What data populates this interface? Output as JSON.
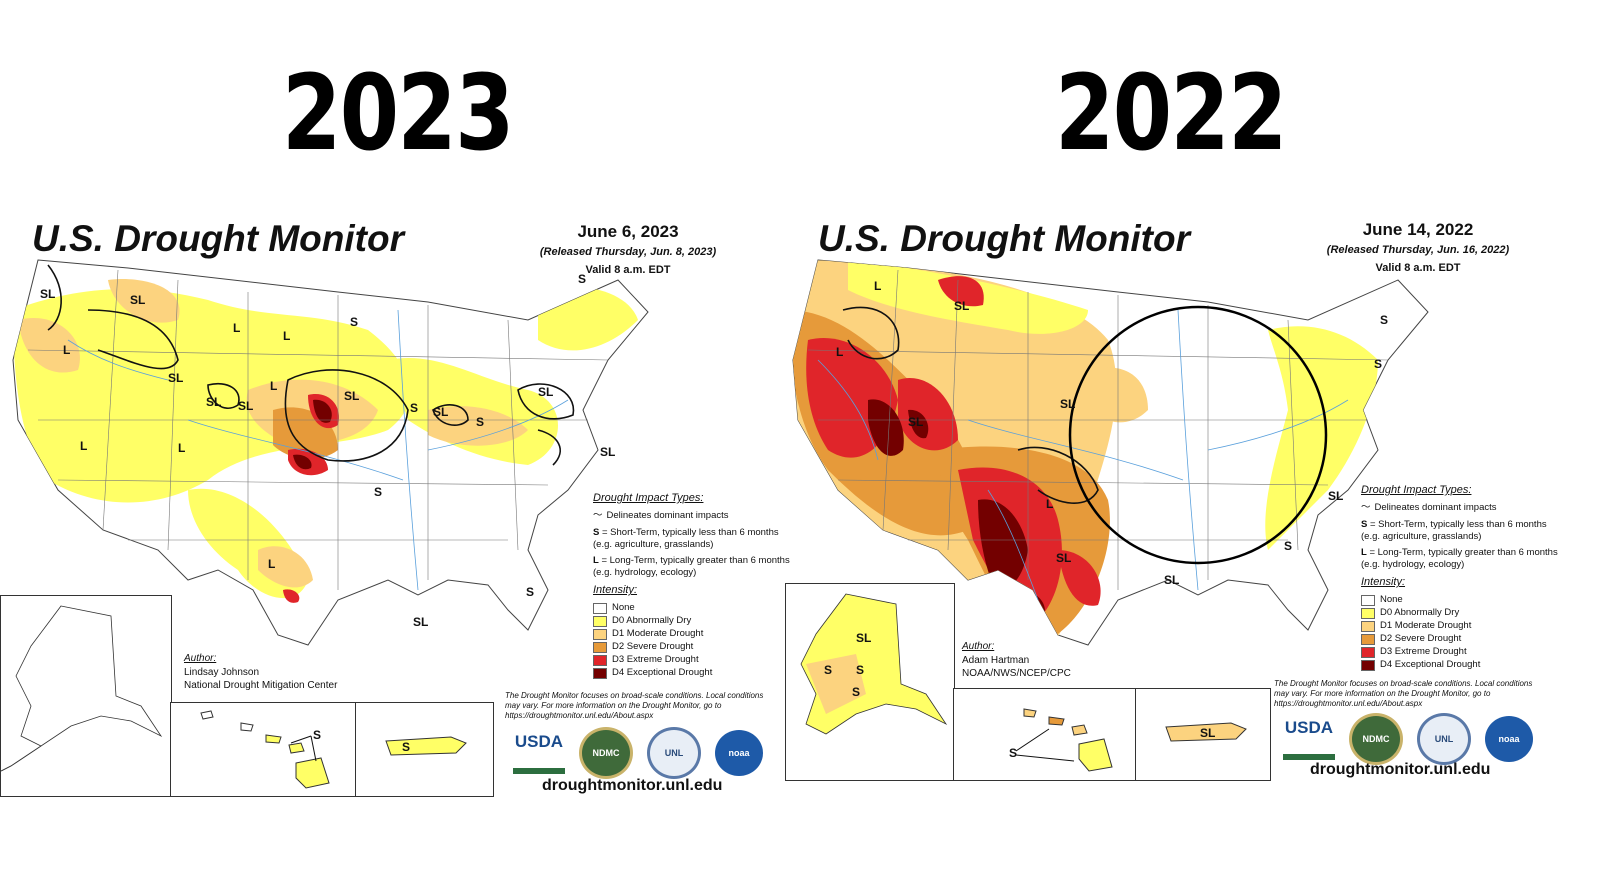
{
  "left": {
    "year": "2023",
    "title": "U.S. Drought Monitor",
    "date": "June 6, 2023",
    "released": "(Released Thursday, Jun. 8, 2023)",
    "valid": "Valid 8 a.m. EDT",
    "author_heading": "Author:",
    "author_name": "Lindsay Johnson",
    "author_org": "National Drought Mitigation Center",
    "url": "droughtmonitor.unl.edu",
    "labels": [
      "SL",
      "SL",
      "L",
      "L",
      "S",
      "L",
      "SL",
      "SL",
      "L",
      "SL",
      "S",
      "SL",
      "S",
      "SL",
      "SL",
      "L",
      "L",
      "S",
      "SL",
      "L",
      "S",
      "SL",
      "S",
      "S"
    ]
  },
  "right": {
    "year": "2022",
    "title": "U.S. Drought Monitor",
    "date": "June 14, 2022",
    "released": "(Released Thursday, Jun. 16, 2022)",
    "valid": "Valid 8 a.m. EDT",
    "author_heading": "Author:",
    "author_name": "Adam Hartman",
    "author_org": "NOAA/NWS/NCEP/CPC",
    "url": "droughtmonitor.unl.edu",
    "labels": [
      "L",
      "SL",
      "L",
      "SL",
      "SL",
      "L",
      "SL",
      "SL",
      "S",
      "S",
      "SL",
      "S",
      "SL",
      "S",
      "S",
      "S",
      "S",
      "SL"
    ]
  },
  "legend": {
    "impact_heading": "Drought Impact Types:",
    "delineates": "Delineates dominant impacts",
    "s_key": "S",
    "s_text": " = Short-Term, typically less than 6 months (e.g. agriculture, grasslands)",
    "l_key": "L",
    "l_text": " = Long-Term, typically greater than 6 months (e.g. hydrology, ecology)",
    "intensity_heading": "Intensity:",
    "levels": [
      {
        "label": "None",
        "color": "#ffffff"
      },
      {
        "label": "D0 Abnormally Dry",
        "color": "#ffff66"
      },
      {
        "label": "D1 Moderate Drought",
        "color": "#fcd37f"
      },
      {
        "label": "D2 Severe Drought",
        "color": "#e69a3a"
      },
      {
        "label": "D3 Extreme Drought",
        "color": "#e0252a"
      },
      {
        "label": "D4 Exceptional Drought",
        "color": "#730000"
      }
    ]
  },
  "disclaimer": "The Drought Monitor focuses on broad-scale conditions. Local conditions may vary. For more information on the Drought Monitor, go to https://droughtmonitor.unl.edu/About.aspx",
  "logos": [
    "USDA",
    "NDMC",
    "UNL",
    "noaa"
  ]
}
